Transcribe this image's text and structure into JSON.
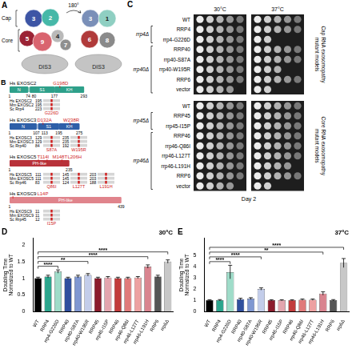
{
  "panel_a": {
    "label": "A",
    "sections": [
      "Cap",
      "Core"
    ],
    "front": {
      "subunits": [
        {
          "id": "3",
          "color": "#3d55a5"
        },
        {
          "id": "2",
          "color": "#46b8a8"
        },
        {
          "id": "5",
          "color": "#9b2335"
        },
        {
          "id": "9",
          "color": "#d9646f"
        },
        {
          "id": "4",
          "color": "#b9b9b9"
        },
        {
          "id": "7",
          "color": "#8f8f8f"
        }
      ],
      "base": "DIS3"
    },
    "rotation": "180°",
    "back": {
      "subunits": [
        {
          "id": "3",
          "color": "#7a8fb8"
        },
        {
          "id": "1",
          "color": "#8fcfc2"
        },
        {
          "id": "6",
          "color": "#b03a3a"
        },
        {
          "id": "8",
          "color": "#8a8a8a"
        }
      ],
      "base": "DIS3"
    }
  },
  "panel_b": {
    "label": "B",
    "proteins": [
      {
        "name": "Hs EXOSC2",
        "color": "#2ea08a",
        "ticks": [
          1,
          74,
          80,
          177,
          293
        ],
        "domains": [
          {
            "name": "N",
            "start": 1,
            "end": 74
          },
          {
            "name": "S1",
            "start": 80,
            "end": 177
          },
          {
            "name": "KH",
            "start": 177,
            "end": 293
          }
        ],
        "mutations": [
          {
            "label": "G198D",
            "position": 198
          }
        ],
        "species": [
          "Hs EXOSC2",
          "Mm EXOSC2",
          "Sc Rrp4"
        ],
        "alignments": [
          {
            "numbers": [
              195,
              195,
              223
            ],
            "yeast_mutation": "G226D"
          }
        ]
      },
      {
        "name": "Hs EXOSC3",
        "color": "#2e5fa8",
        "ticks": [
          1,
          107,
          113,
          195,
          275
        ],
        "domains": [
          {
            "name": "N",
            "start": 1,
            "end": 107
          },
          {
            "name": "S1",
            "start": 113,
            "end": 195
          },
          {
            "name": "KH",
            "start": 195,
            "end": 275
          }
        ],
        "mutations": [
          {
            "label": "D132A",
            "position": 132
          },
          {
            "label": "W238R",
            "position": 238
          }
        ],
        "species": [
          "Hs EXOSC3",
          "Mm EXOSC3",
          "Sc Rrp40"
        ],
        "alignments": [
          {
            "numbers": [
              129,
              129,
              84
            ],
            "yeast_mutation": "S87A"
          },
          {
            "numbers": [
              235,
              235,
              192
            ],
            "yeast_mutation": "W195R"
          }
        ]
      },
      {
        "name": "Hs EXOSC5",
        "color": "#b8323a",
        "ticks": [
          1,
          235
        ],
        "domains": [
          {
            "name": "PH-like",
            "start": 1,
            "end": 235
          }
        ],
        "mutations": [
          {
            "label": "T114I",
            "position": 114
          },
          {
            "label": "M148T",
            "position": 148
          },
          {
            "label": "L206H",
            "position": 206
          }
        ],
        "species": [
          "Hs EXOSC5",
          "Mm EXOSC5",
          "Sc Rrp46"
        ],
        "alignments": [
          {
            "numbers": [
              111,
              111,
              83
            ],
            "yeast_mutation": "Q86I"
          },
          {
            "numbers": [
              145,
              145,
              124
            ],
            "yeast_mutation": "L127T"
          },
          {
            "numbers": [
              203,
              203,
              188
            ],
            "yeast_mutation": "L191H"
          }
        ]
      },
      {
        "name": "Hs EXOSC9",
        "color": "#e0848c",
        "ticks": [
          1,
          439
        ],
        "domains": [
          {
            "name": "PH-like",
            "start": 1,
            "end": 439
          }
        ],
        "mutations": [
          {
            "label": "L14P",
            "position": 14
          }
        ],
        "species": [
          "Hs EXOSC9",
          "Mm EXOSC9",
          "Sc Rrp45"
        ],
        "alignments": [
          {
            "numbers": [
              11,
              11,
              12
            ],
            "yeast_mutation": "I15P"
          }
        ]
      }
    ]
  },
  "panel_c": {
    "label": "C",
    "temperatures": [
      "30°C",
      "37°C"
    ],
    "day": "Day 2",
    "groups": [
      {
        "title": "Cap RNA exosomopathy mutant models",
        "rows": [
          {
            "strain": "WT",
            "growth": [
              5,
              5
            ]
          },
          {
            "strain": "RRP4",
            "growth": [
              5,
              5
            ]
          },
          {
            "strain": "rrp4-G226D",
            "growth": [
              5,
              2
            ]
          },
          {
            "strain": "RRP40",
            "growth": [
              5,
              5
            ]
          },
          {
            "strain": "rrp40-S87A",
            "growth": [
              5,
              5
            ]
          },
          {
            "strain": "rrp40-W195R",
            "growth": [
              5,
              3
            ]
          },
          {
            "strain": "RRP6",
            "growth": [
              5,
              5
            ]
          },
          {
            "strain": "vector",
            "growth": [
              4,
              2
            ]
          }
        ],
        "brackets": [
          {
            "label": "rrp4Δ",
            "members": [
              "RRP4",
              "rrp4-G226D"
            ]
          },
          {
            "label": "rrp40Δ",
            "members": [
              "RRP40",
              "rrp40-S87A",
              "rrp40-W195R",
              "RRP6",
              "vector"
            ]
          }
        ]
      },
      {
        "title": "Core RNA exosomopathy mutant models",
        "rows": [
          {
            "strain": "WT",
            "growth": [
              5,
              5
            ]
          },
          {
            "strain": "RRP45",
            "growth": [
              5,
              5
            ]
          },
          {
            "strain": "rrp45-I15P",
            "growth": [
              5,
              5
            ]
          },
          {
            "strain": "RRP46",
            "growth": [
              5,
              5
            ]
          },
          {
            "strain": "rrp46-Q86I",
            "growth": [
              5,
              5
            ]
          },
          {
            "strain": "rrp46-L127T",
            "growth": [
              5,
              5
            ]
          },
          {
            "strain": "rrp46-L191H",
            "growth": [
              5,
              4
            ]
          },
          {
            "strain": "RRP6",
            "growth": [
              5,
              5
            ]
          },
          {
            "strain": "vector",
            "growth": [
              4,
              2
            ]
          }
        ],
        "brackets": [
          {
            "label": "rrp45Δ",
            "members": [
              "RRP45",
              "rrp45-I15P"
            ]
          },
          {
            "label": "rrp46Δ",
            "members": [
              "RRP46",
              "rrp46-Q86I",
              "rrp46-L127T",
              "rrp46-L191H",
              "RRP6",
              "vector"
            ]
          }
        ]
      }
    ]
  },
  "chart_data": [
    {
      "panel": "D",
      "type": "bar",
      "title": "30ºC",
      "y_label": "Doubling Time Normalized to WT",
      "categories": [
        "WT",
        "RRP4",
        "rrp4-G226D",
        "RRP40",
        "rrp40-S87A",
        "rrp40-W195R",
        "RRP45",
        "rrp45-I15P",
        "RRP46",
        "rrp46-Q86I",
        "rrp46-L127T",
        "rrp46-L191H",
        "RRP6",
        "rrp6Δ"
      ],
      "values": [
        1,
        1.05,
        1.2,
        1.0,
        1.05,
        1.1,
        1.0,
        1.02,
        1.0,
        1.0,
        1.02,
        1.35,
        1.05,
        1.5
      ],
      "errors": [
        0.03,
        0.04,
        0.05,
        0.03,
        0.04,
        0.04,
        0.03,
        0.03,
        0.03,
        0.03,
        0.03,
        0.05,
        0.04,
        0.05
      ],
      "colors": [
        "#000000",
        "#2ca58d",
        "#9fdcc9",
        "#2f4f9e",
        "#7f97d1",
        "#c3cdea",
        "#8c1c2c",
        "#e3a5ae",
        "#c23b3b",
        "#e07a7a",
        "#eda1a1",
        "#d9848f",
        "#555555",
        "#c8c8c8"
      ],
      "ylim": [
        0,
        2.2
      ],
      "yticks": [
        0,
        0.5,
        1,
        1.5,
        2
      ],
      "grid": false,
      "significance": [
        {
          "from": "WT",
          "to": "rrp4-G226D",
          "label": "****"
        },
        {
          "from": "WT",
          "to": "rrp40-W195R",
          "label": "**"
        },
        {
          "from": "WT",
          "to": "rrp46-L191H",
          "label": "****"
        },
        {
          "from": "WT",
          "to": "rrp6Δ",
          "label": "****"
        }
      ]
    },
    {
      "panel": "E",
      "type": "bar",
      "title": "37ºC",
      "y_label": "Doubling Time Normalized to WT",
      "categories": [
        "WT",
        "RRP4",
        "rrp4-G226D",
        "RRP40",
        "rrp40-S87A",
        "rrp40-W195R",
        "RRP45",
        "rrp45-I15P",
        "RRP46",
        "rrp46-Q86I",
        "rrp46-L127T",
        "rrp46-L191H",
        "RRP6",
        "rrp6Δ"
      ],
      "values": [
        1,
        1.0,
        3.5,
        1.1,
        1.15,
        2.0,
        1.0,
        1.0,
        1.0,
        1.05,
        1.05,
        1.6,
        1.0,
        4.3
      ],
      "errors": [
        0.05,
        0.06,
        0.6,
        0.08,
        0.08,
        0.1,
        0.05,
        0.05,
        0.05,
        0.06,
        0.06,
        0.15,
        0.06,
        0.4
      ],
      "colors": [
        "#000000",
        "#2ca58d",
        "#9fdcc9",
        "#2f4f9e",
        "#7f97d1",
        "#c3cdea",
        "#8c1c2c",
        "#e3a5ae",
        "#c23b3b",
        "#e07a7a",
        "#eda1a1",
        "#d9848f",
        "#555555",
        "#c8c8c8"
      ],
      "ylim": [
        0,
        6.5
      ],
      "yticks": [
        0,
        1,
        2,
        3,
        4,
        5
      ],
      "grid": false,
      "significance": [
        {
          "from": "WT",
          "to": "rrp4-G226D",
          "label": "****"
        },
        {
          "from": "WT",
          "to": "rrp40-W195R",
          "label": "****"
        },
        {
          "from": "WT",
          "to": "rrp46-L191H",
          "label": "**"
        },
        {
          "from": "WT",
          "to": "rrp6Δ",
          "label": "****"
        }
      ]
    }
  ]
}
